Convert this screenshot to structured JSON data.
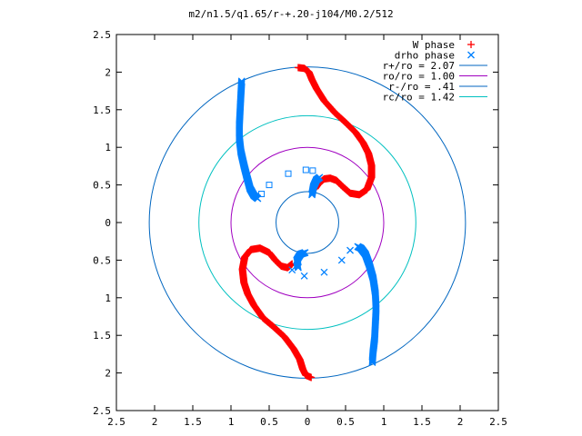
{
  "chart_data": {
    "type": "scatter",
    "title": "m2/n1.5/q1.65/r-+.20-j104/M0.2/512",
    "xlim": [
      -2.5,
      2.5
    ],
    "ylim": [
      -2.5,
      2.5
    ],
    "x_ticks": [
      -2.5,
      -2,
      -1.5,
      -1,
      -0.5,
      0,
      0.5,
      1,
      1.5,
      2,
      2.5
    ],
    "y_ticks": [
      -2.5,
      -2,
      -1.5,
      -1,
      -0.5,
      0,
      0.5,
      1,
      1.5,
      2,
      2.5
    ],
    "x_tick_labels": [
      "2.5",
      "2",
      "1.5",
      "1",
      "0.5",
      "0",
      "0.5",
      "1",
      "1.5",
      "2",
      "2.5"
    ],
    "y_tick_labels": [
      "2.5",
      "2",
      "1.5",
      "1",
      "0.5",
      "0",
      "0.5",
      "1",
      "1.5",
      "2",
      "2.5"
    ],
    "grid": false,
    "legend_position": "top-right",
    "series": [
      {
        "name": "W phase",
        "marker": "+",
        "color": "#ff0000",
        "curves": [
          [
            [
              -0.12,
              2.06
            ],
            [
              -0.04,
              2.05
            ],
            [
              0.02,
              2.0
            ],
            [
              0.06,
              1.9
            ],
            [
              0.12,
              1.78
            ],
            [
              0.22,
              1.62
            ],
            [
              0.36,
              1.46
            ],
            [
              0.5,
              1.33
            ],
            [
              0.63,
              1.2
            ],
            [
              0.73,
              1.06
            ],
            [
              0.8,
              0.92
            ],
            [
              0.84,
              0.76
            ],
            [
              0.84,
              0.6
            ],
            [
              0.78,
              0.44
            ],
            [
              0.68,
              0.37
            ],
            [
              0.56,
              0.39
            ],
            [
              0.46,
              0.48
            ],
            [
              0.38,
              0.56
            ],
            [
              0.3,
              0.59
            ],
            [
              0.22,
              0.58
            ],
            [
              0.15,
              0.52
            ],
            [
              0.1,
              0.45
            ]
          ],
          [
            [
              0.05,
              -2.06
            ],
            [
              -0.02,
              -2.03
            ],
            [
              -0.06,
              -1.95
            ],
            [
              -0.1,
              -1.82
            ],
            [
              -0.18,
              -1.68
            ],
            [
              -0.3,
              -1.52
            ],
            [
              -0.45,
              -1.38
            ],
            [
              -0.58,
              -1.27
            ],
            [
              -0.7,
              -1.1
            ],
            [
              -0.78,
              -0.95
            ],
            [
              -0.83,
              -0.8
            ],
            [
              -0.85,
              -0.62
            ],
            [
              -0.82,
              -0.46
            ],
            [
              -0.74,
              -0.36
            ],
            [
              -0.62,
              -0.34
            ],
            [
              -0.5,
              -0.4
            ],
            [
              -0.42,
              -0.5
            ],
            [
              -0.34,
              -0.58
            ],
            [
              -0.26,
              -0.6
            ],
            [
              -0.2,
              -0.55
            ]
          ]
        ]
      },
      {
        "name": "drho phase",
        "marker": "x",
        "color": "#0080ff",
        "curves": [
          [
            [
              -0.86,
              1.88
            ],
            [
              -0.87,
              1.7
            ],
            [
              -0.88,
              1.5
            ],
            [
              -0.89,
              1.3
            ],
            [
              -0.89,
              1.12
            ],
            [
              -0.87,
              0.94
            ],
            [
              -0.83,
              0.76
            ],
            [
              -0.79,
              0.6
            ],
            [
              -0.75,
              0.45
            ],
            [
              -0.7,
              0.36
            ],
            [
              -0.65,
              0.32
            ]
          ],
          [
            [
              0.06,
              0.37
            ],
            [
              0.08,
              0.48
            ],
            [
              0.12,
              0.57
            ],
            [
              0.16,
              0.6
            ]
          ],
          [
            [
              0.66,
              -0.32
            ],
            [
              0.7,
              -0.34
            ],
            [
              0.76,
              -0.42
            ],
            [
              0.81,
              -0.56
            ],
            [
              0.86,
              -0.74
            ],
            [
              0.89,
              -0.94
            ],
            [
              0.9,
              -1.15
            ],
            [
              0.89,
              -1.35
            ],
            [
              0.88,
              -1.55
            ],
            [
              0.86,
              -1.72
            ],
            [
              0.85,
              -1.86
            ]
          ],
          [
            [
              -0.12,
              -0.6
            ],
            [
              -0.14,
              -0.5
            ],
            [
              -0.09,
              -0.42
            ],
            [
              -0.03,
              -0.4
            ]
          ]
        ],
        "scatter_points": [
          [
            -0.2,
            -0.63
          ],
          [
            -0.04,
            -0.71
          ],
          [
            0.22,
            -0.66
          ],
          [
            0.45,
            -0.5
          ],
          [
            0.56,
            -0.37
          ]
        ]
      },
      {
        "name": "",
        "marker": "square",
        "color": "#0080ff",
        "points": [
          [
            -0.6,
            0.38
          ],
          [
            -0.5,
            0.5
          ],
          [
            -0.25,
            0.65
          ],
          [
            -0.02,
            0.7
          ],
          [
            0.07,
            0.69
          ]
        ]
      },
      {
        "name": "r+/ro = 2.07",
        "type": "circle",
        "radius": 2.07,
        "color": "#0066c0"
      },
      {
        "name": "ro/ro = 1.00",
        "type": "circle",
        "radius": 1.0,
        "color": "#a000c0"
      },
      {
        "name": "r-/ro = .41",
        "type": "circle",
        "radius": 0.41,
        "color": "#0066c0"
      },
      {
        "name": "rc/ro = 1.42",
        "type": "circle",
        "radius": 1.42,
        "color": "#00c0c0"
      }
    ]
  }
}
